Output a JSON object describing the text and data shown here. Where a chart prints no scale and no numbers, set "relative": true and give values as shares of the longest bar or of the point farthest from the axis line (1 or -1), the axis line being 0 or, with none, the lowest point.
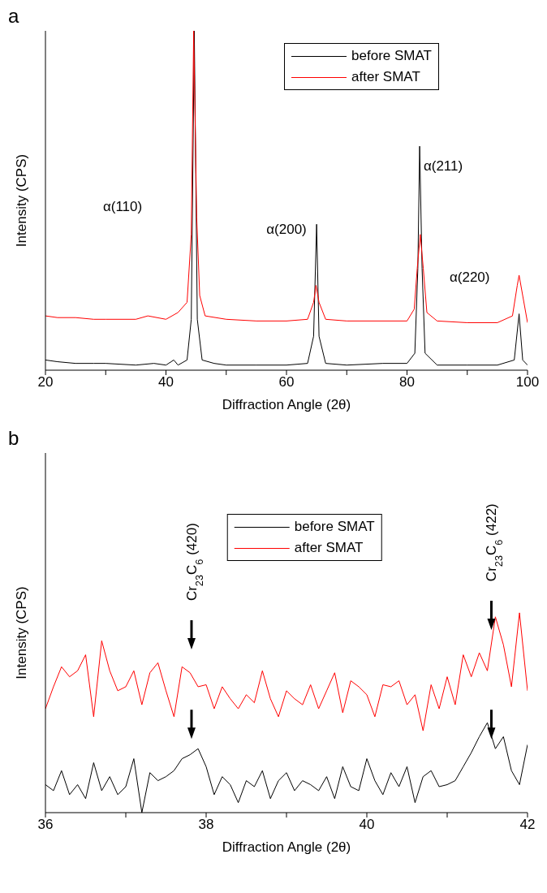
{
  "chart_data": [
    {
      "type": "line",
      "title": "a",
      "xlabel": "Diffraction Angle (2θ)",
      "ylabel": "Intensity (CPS)",
      "relative": true,
      "legend": "top right",
      "xlim": [
        20,
        100
      ],
      "xticks": [
        20,
        {
          "value": 30,
          "label": null
        },
        40,
        {
          "value": 50,
          "label": null
        },
        60,
        {
          "value": 70,
          "label": null
        },
        80,
        {
          "value": 90,
          "label": null
        },
        100
      ],
      "series": [
        {
          "name": "before SMAT",
          "color": "#000000",
          "x": [
            20,
            22,
            25,
            28,
            30,
            35,
            38,
            40,
            41.3,
            42,
            43.5,
            44.2,
            44.7,
            45.2,
            46,
            48,
            50,
            55,
            60,
            63.5,
            64.5,
            65,
            65.4,
            66.5,
            70,
            76,
            80,
            81.3,
            81.8,
            82.1,
            82.5,
            83,
            85,
            90,
            95,
            97.8,
            98.6,
            99.2,
            100
          ],
          "values": [
            0.03,
            0.025,
            0.02,
            0.02,
            0.02,
            0.015,
            0.02,
            0.015,
            0.03,
            0.015,
            0.03,
            0.15,
            1.0,
            0.15,
            0.03,
            0.02,
            0.015,
            0.015,
            0.015,
            0.02,
            0.1,
            0.43,
            0.1,
            0.02,
            0.015,
            0.02,
            0.02,
            0.05,
            0.3,
            0.66,
            0.3,
            0.05,
            0.015,
            0.015,
            0.015,
            0.03,
            0.166,
            0.03,
            0.015
          ]
        },
        {
          "name": "after SMAT",
          "color": "#ff0000",
          "x": [
            20,
            22,
            25,
            28,
            30,
            35,
            37,
            40,
            42,
            43.5,
            44.2,
            44.6,
            45.1,
            45.6,
            46.5,
            50,
            55,
            60,
            63.5,
            64.5,
            64.9,
            65.4,
            66.5,
            70,
            80,
            81.2,
            81.7,
            82.2,
            82.7,
            83.3,
            85,
            90,
            95,
            97.5,
            98.3,
            98.6,
            99.2,
            100
          ],
          "values": [
            0.16,
            0.155,
            0.155,
            0.15,
            0.15,
            0.15,
            0.16,
            0.15,
            0.17,
            0.2,
            0.4,
            1.0,
            0.45,
            0.22,
            0.16,
            0.15,
            0.145,
            0.145,
            0.15,
            0.2,
            0.25,
            0.2,
            0.15,
            0.145,
            0.145,
            0.18,
            0.3,
            0.4,
            0.3,
            0.17,
            0.145,
            0.14,
            0.14,
            0.16,
            0.25,
            0.28,
            0.22,
            0.14
          ]
        }
      ],
      "annotations": [
        "α(110)",
        "α(200)",
        "α(211)",
        "α(220)"
      ]
    },
    {
      "type": "line",
      "title": "b",
      "xlabel": "Diffraction Angle (2θ)",
      "ylabel": "Intensity (CPS)",
      "relative": true,
      "legend": "top",
      "xlim": [
        36,
        42
      ],
      "xticks": [
        36,
        {
          "value": 37,
          "label": null
        },
        38,
        {
          "value": 39,
          "label": null
        },
        40,
        {
          "value": 41,
          "label": null
        },
        42
      ],
      "series": [
        {
          "name": "before SMAT",
          "color": "#000000",
          "x": [
            36.0,
            36.1,
            36.2,
            36.3,
            36.4,
            36.5,
            36.6,
            36.7,
            36.8,
            36.9,
            37.0,
            37.1,
            37.2,
            37.3,
            37.4,
            37.5,
            37.6,
            37.7,
            37.8,
            37.9,
            38.0,
            38.1,
            38.2,
            38.3,
            38.4,
            38.5,
            38.6,
            38.7,
            38.8,
            38.9,
            39.0,
            39.1,
            39.2,
            39.3,
            39.4,
            39.5,
            39.6,
            39.7,
            39.8,
            39.9,
            40.0,
            40.1,
            40.2,
            40.3,
            40.4,
            40.5,
            40.6,
            40.7,
            40.8,
            40.9,
            41.0,
            41.1,
            41.2,
            41.3,
            41.4,
            41.5,
            41.6,
            41.7,
            41.8,
            41.9,
            42.0
          ],
          "values": [
            0.14,
            0.11,
            0.21,
            0.09,
            0.14,
            0.07,
            0.25,
            0.11,
            0.18,
            0.09,
            0.13,
            0.27,
            0,
            0.2,
            0.16,
            0.18,
            0.21,
            0.27,
            0.29,
            0.32,
            0.23,
            0.09,
            0.18,
            0.14,
            0.05,
            0.16,
            0.13,
            0.21,
            0.07,
            0.16,
            0.2,
            0.11,
            0.16,
            0.14,
            0.11,
            0.18,
            0.07,
            0.23,
            0.13,
            0.11,
            0.27,
            0.16,
            0.09,
            0.2,
            0.13,
            0.23,
            0.05,
            0.18,
            0.21,
            0.13,
            0.14,
            0.16,
            0.23,
            0.3,
            0.38,
            0.45,
            0.32,
            0.38,
            0.21,
            0.14,
            0.34
          ]
        },
        {
          "name": "after SMAT",
          "color": "#ff0000",
          "x": [
            36.0,
            36.1,
            36.2,
            36.3,
            36.4,
            36.5,
            36.6,
            36.7,
            36.8,
            36.9,
            37.0,
            37.1,
            37.2,
            37.3,
            37.4,
            37.5,
            37.6,
            37.7,
            37.8,
            37.9,
            38.0,
            38.1,
            38.2,
            38.3,
            38.4,
            38.5,
            38.6,
            38.7,
            38.8,
            38.9,
            39.0,
            39.1,
            39.2,
            39.3,
            39.4,
            39.5,
            39.6,
            39.7,
            39.8,
            39.9,
            40.0,
            40.1,
            40.2,
            40.3,
            40.4,
            40.5,
            40.6,
            40.7,
            40.8,
            40.9,
            41.0,
            41.1,
            41.2,
            41.3,
            41.4,
            41.5,
            41.6,
            41.7,
            41.8,
            41.9,
            42.0
          ],
          "values": [
            0.52,
            0.63,
            0.73,
            0.68,
            0.71,
            0.79,
            0.48,
            0.86,
            0.71,
            0.61,
            0.63,
            0.71,
            0.54,
            0.7,
            0.75,
            0.61,
            0.48,
            0.73,
            0.7,
            0.63,
            0.64,
            0.52,
            0.63,
            0.57,
            0.52,
            0.59,
            0.55,
            0.71,
            0.57,
            0.48,
            0.61,
            0.57,
            0.54,
            0.64,
            0.52,
            0.61,
            0.7,
            0.5,
            0.66,
            0.63,
            0.59,
            0.48,
            0.64,
            0.63,
            0.66,
            0.54,
            0.59,
            0.41,
            0.64,
            0.52,
            0.68,
            0.54,
            0.79,
            0.68,
            0.8,
            0.71,
            0.98,
            0.84,
            0.63,
            1,
            0.61
          ]
        }
      ],
      "annotations": [
        "Cr$_{23}$C$_{6}$ (420)",
        "Cr$_{23}$C$_{6}$ (422)"
      ]
    }
  ]
}
